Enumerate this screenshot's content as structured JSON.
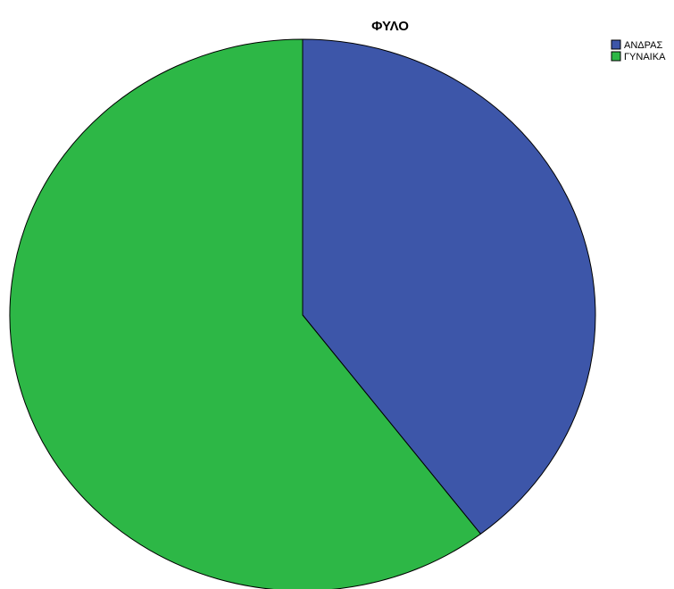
{
  "chart_data": {
    "type": "pie",
    "title": "ΦΥΛΟ",
    "categories": [
      "ΑΝΔΡΑΣ",
      "ΓΥΝΑΙΚΑ"
    ],
    "values": [
      39.6,
      60.4
    ],
    "colors": [
      "#3d56a9",
      "#2db746"
    ],
    "start_angle": "12 o'clock",
    "direction": "clockwise",
    "legend": {
      "position": "top-right",
      "entries": [
        "ΑΝΔΡΑΣ",
        "ΓΥΝΑΙΚΑ"
      ]
    }
  }
}
